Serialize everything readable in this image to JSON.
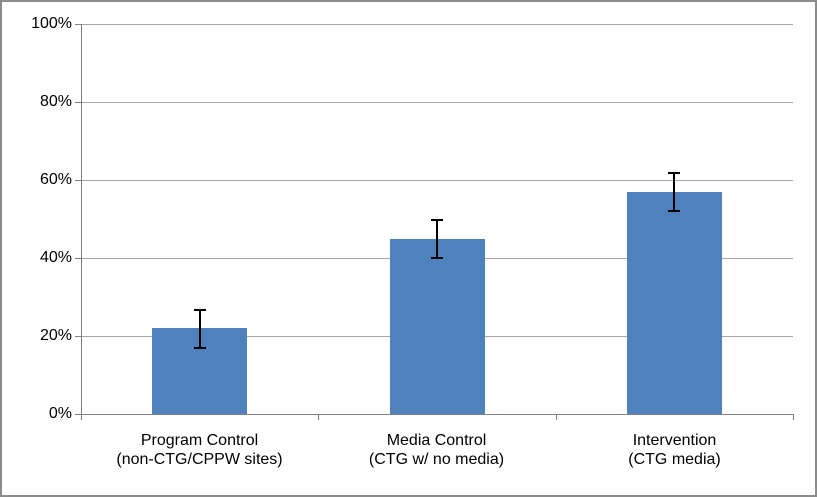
{
  "chart": {
    "background_color": "#FFFFFF",
    "border_color": "#8C8C8C",
    "bar_color": "#4F81BD",
    "gridline_color": "#A6A6A6",
    "axis_color": "#808080",
    "error_bar_color": "#000000",
    "text_color": "#000000"
  },
  "chart_data": {
    "type": "bar",
    "title": "",
    "xlabel": "",
    "ylabel": "",
    "categories": [
      "Program Control (non-CTG/CPPW sites)",
      "Media Control (CTG w/ no media)",
      "Intervention (CTG media)"
    ],
    "category_lines": [
      [
        "Program Control",
        "(non-CTG/CPPW sites)"
      ],
      [
        "Media Control",
        "(CTG w/ no media)"
      ],
      [
        "Intervention",
        "(CTG media)"
      ]
    ],
    "values": [
      22,
      45,
      57
    ],
    "error_bars": {
      "low": [
        17,
        40,
        52
      ],
      "high": [
        27,
        50,
        62
      ]
    },
    "ylim": [
      0,
      100
    ],
    "y_ticks": [
      0,
      20,
      40,
      60,
      80,
      100
    ],
    "y_tick_labels": [
      "0%",
      "20%",
      "40%",
      "60%",
      "80%",
      "100%"
    ],
    "grid": true,
    "legend": "none"
  }
}
